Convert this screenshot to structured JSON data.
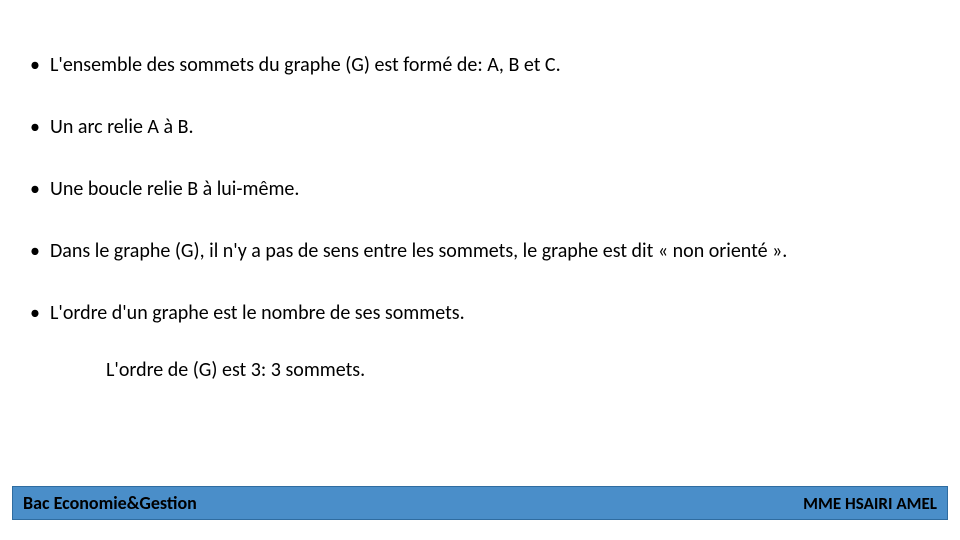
{
  "slide": {
    "bullets": [
      "L'ensemble des sommets du graphe (G) est formé de: A, B et C.",
      "Un arc relie A à B.",
      "Une boucle relie B à lui-même.",
      "Dans le graphe (G), il n'y a pas de sens entre les sommets, le graphe est dit « non orienté ».",
      "L'ordre d'un graphe est le nombre de ses sommets."
    ],
    "indent_line": "L'ordre de (G) est 3: 3 sommets.",
    "text_color": "#000000",
    "text_fontsize": 20,
    "background_color": "#ffffff"
  },
  "footer": {
    "left_text": "Bac Economie&Gestion",
    "right_text": "MME HSAIRI AMEL",
    "bar_color": "#4a8ec9",
    "border_color": "#2f6ca0",
    "text_color": "#000000",
    "fontsize": 18
  }
}
